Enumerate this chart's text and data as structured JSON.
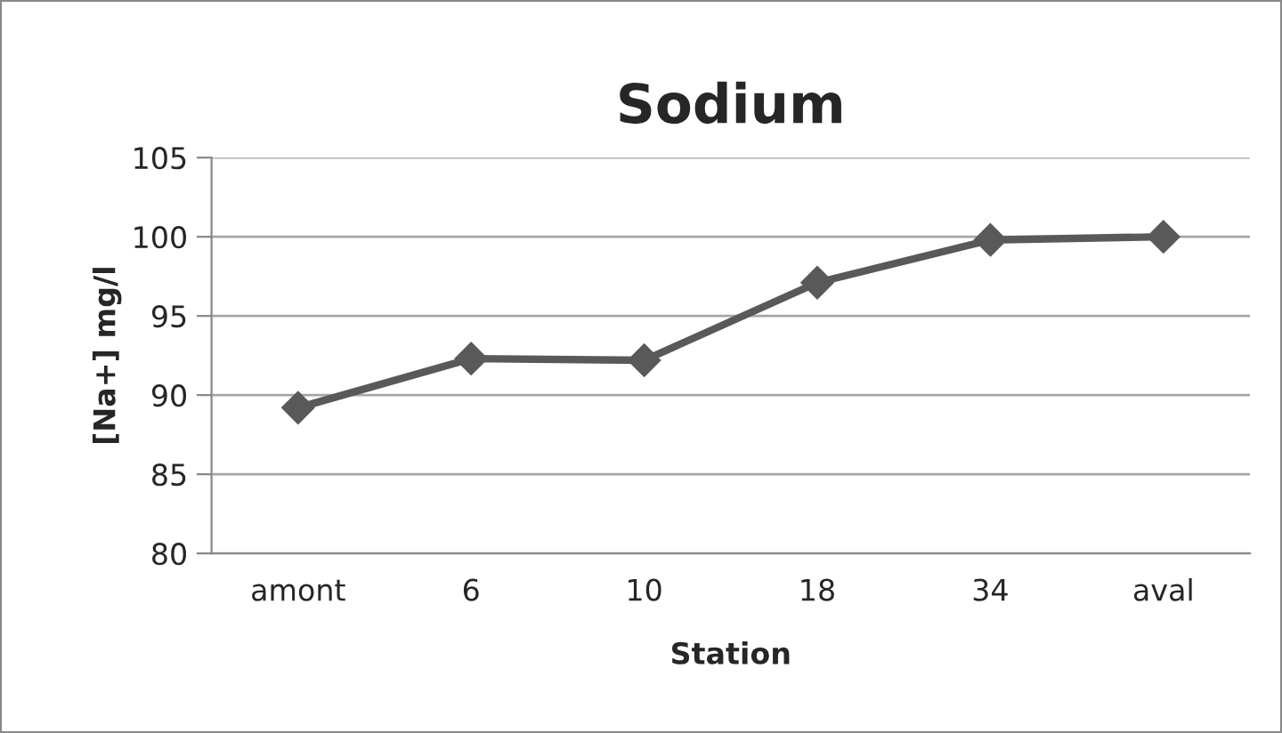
{
  "chart_data": {
    "type": "line",
    "title": "Sodium",
    "xlabel": "Station",
    "ylabel": "[Na+] mg/l",
    "categories": [
      "amont",
      "6",
      "10",
      "18",
      "34",
      "aval"
    ],
    "series": [
      {
        "color": "#595959",
        "values": [
          89.2,
          92.3,
          92.2,
          97.1,
          99.8,
          100.0
        ]
      }
    ],
    "ylim": [
      80,
      105
    ],
    "yticks": [
      80,
      85,
      90,
      95,
      100,
      105
    ],
    "grid": "y",
    "legend": false,
    "marker": "diamond",
    "line_style": "solid"
  }
}
